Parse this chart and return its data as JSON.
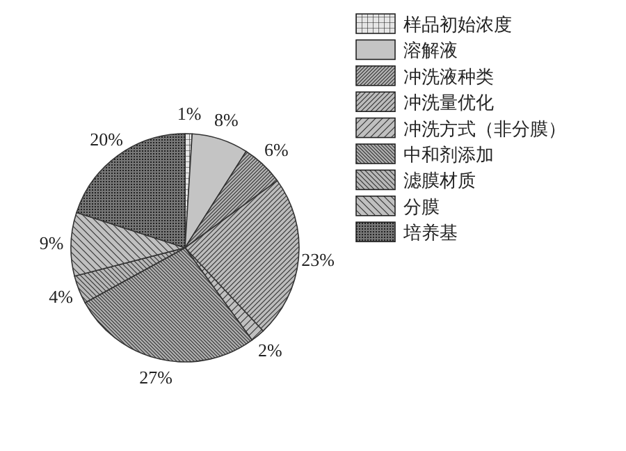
{
  "chart_data": {
    "type": "pie",
    "categories": [
      "样品初始浓度",
      "溶解液",
      "冲洗液种类",
      "冲洗量优化",
      "冲洗方式（非分膜）",
      "中和剂添加",
      "滤膜材质",
      "分膜",
      "培养基"
    ],
    "values": [
      1,
      8,
      6,
      23,
      2,
      27,
      4,
      9,
      20
    ],
    "colors": [
      "#e6e6e6",
      "#c4c4c4",
      "#b4b4b4",
      "#bcbcbc",
      "#c0c0c0",
      "#b0b0b0",
      "#b8b8b8",
      "#c0c0c0",
      "#777777"
    ],
    "value_labels": [
      "1%",
      "8%",
      "6%",
      "23%",
      "2%",
      "27%",
      "4%",
      "9%",
      "20%"
    ],
    "legend": "top right"
  }
}
